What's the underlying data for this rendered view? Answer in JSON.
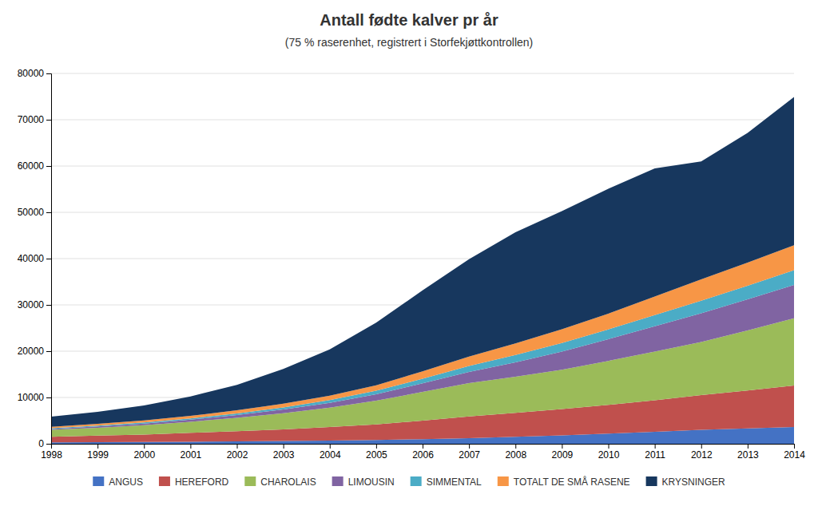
{
  "chart_data": {
    "type": "area",
    "stacked": true,
    "title": "Antall fødte kalver pr år",
    "subtitle": "(75 % raserenhet, registrert i Storfekjøttkontrollen)",
    "x": [
      1998,
      1999,
      2000,
      2001,
      2002,
      2003,
      2004,
      2005,
      2006,
      2007,
      2008,
      2009,
      2010,
      2011,
      2012,
      2013,
      2014
    ],
    "xlim": [
      1998,
      2014
    ],
    "xticks": [
      1998,
      1999,
      2000,
      2001,
      2002,
      2003,
      2004,
      2005,
      2006,
      2007,
      2008,
      2009,
      2010,
      2011,
      2012,
      2013,
      2014
    ],
    "ylim": [
      0,
      80000
    ],
    "yticks": [
      0,
      10000,
      20000,
      30000,
      40000,
      50000,
      60000,
      70000,
      80000
    ],
    "grid": true,
    "legend": "bottom",
    "series": [
      {
        "name": "ANGUS",
        "color": "#4472C4",
        "values": [
          300,
          350,
          400,
          450,
          500,
          600,
          700,
          800,
          1000,
          1200,
          1500,
          1800,
          2200,
          2600,
          3000,
          3300,
          3600
        ]
      },
      {
        "name": "HEREFORD",
        "color": "#C0504D",
        "values": [
          1200,
          1400,
          1600,
          1900,
          2200,
          2500,
          2900,
          3400,
          4000,
          4700,
          5200,
          5700,
          6200,
          6800,
          7500,
          8200,
          9000
        ]
      },
      {
        "name": "CHAROLAIS",
        "color": "#9BBB59",
        "values": [
          1500,
          1700,
          2000,
          2400,
          2900,
          3500,
          4200,
          5100,
          6200,
          7200,
          7800,
          8500,
          9500,
          10500,
          11500,
          13000,
          14500
        ]
      },
      {
        "name": "LIMOUSIN",
        "color": "#8064A2",
        "values": [
          200,
          280,
          360,
          450,
          600,
          800,
          1050,
          1400,
          1850,
          2400,
          3100,
          3900,
          4700,
          5500,
          6200,
          6700,
          7200
        ]
      },
      {
        "name": "SIMMENTAL",
        "color": "#4BACC6",
        "values": [
          150,
          200,
          240,
          280,
          360,
          450,
          580,
          750,
          1000,
          1300,
          1600,
          1850,
          2100,
          2400,
          2700,
          2950,
          3200
        ]
      },
      {
        "name": "TOTALT DE SMÅ RASENE",
        "color": "#F79646",
        "values": [
          300,
          380,
          460,
          550,
          660,
          800,
          970,
          1200,
          1600,
          2050,
          2500,
          3000,
          3400,
          4000,
          4600,
          5000,
          5400
        ]
      },
      {
        "name": "KRYSNINGER",
        "color": "#17375E",
        "values": [
          2200,
          2600,
          3200,
          4200,
          5500,
          7500,
          10000,
          13500,
          17500,
          21000,
          24000,
          25500,
          27000,
          27700,
          25500,
          28000,
          32000
        ]
      }
    ]
  }
}
